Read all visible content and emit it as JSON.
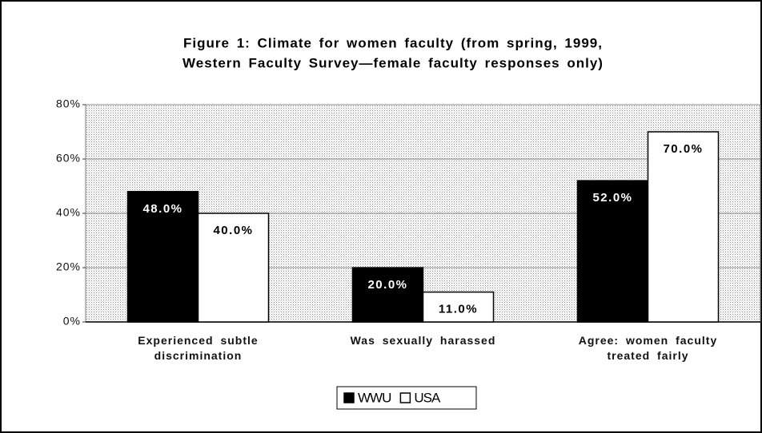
{
  "chart_data": {
    "type": "bar",
    "title": [
      "Figure 1: Climate for women faculty (from spring, 1999,",
      "Western Faculty Survey—female faculty responses only)"
    ],
    "categories": [
      "Experienced subtle discrimination",
      "Was sexually harassed",
      "Agree: women faculty treated fairly"
    ],
    "series": [
      {
        "name": "WWU",
        "color": "#000000",
        "values": [
          48,
          20,
          52
        ],
        "value_labels": [
          "48.0%",
          "20.0%",
          "52.0%"
        ]
      },
      {
        "name": "USA",
        "color": "#ffffff",
        "values": [
          40,
          11,
          70
        ],
        "value_labels": [
          "40.0%",
          "11.0%",
          "70.0%"
        ]
      }
    ],
    "ylim": [
      0,
      80
    ],
    "yticks": [
      {
        "value": 0,
        "label": "0%"
      },
      {
        "value": 20,
        "label": "20%"
      },
      {
        "value": 40,
        "label": "40%"
      },
      {
        "value": 60,
        "label": "60%"
      },
      {
        "value": 80,
        "label": "80%"
      }
    ],
    "grid": true,
    "legend": "bottom"
  }
}
